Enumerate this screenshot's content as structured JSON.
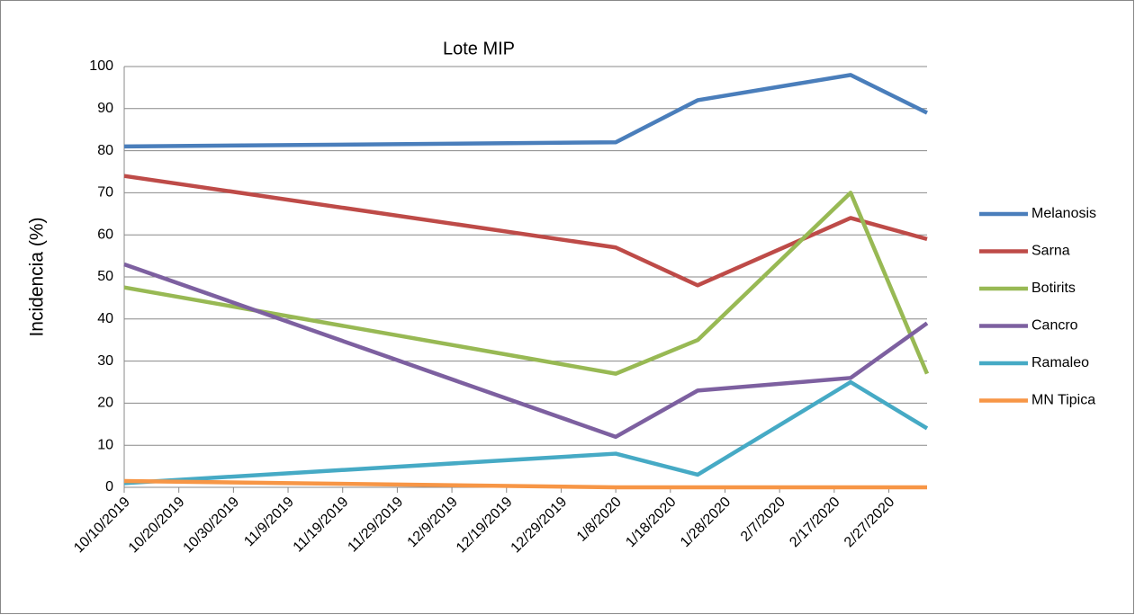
{
  "chart_data": {
    "type": "line",
    "title": "Lote MIP",
    "y_label": "Incidencia (%)",
    "x": [
      "10/10/2019",
      "1/8/2020",
      "1/23/2020",
      "2/20/2020",
      "3/5/2020"
    ],
    "series": [
      {
        "name": "Melanosis",
        "color": "#4a7ebb",
        "values": [
          81,
          82,
          92,
          98,
          89
        ]
      },
      {
        "name": "Sarna",
        "color": "#be4b48",
        "values": [
          74,
          57,
          48,
          64,
          59
        ]
      },
      {
        "name": "Botirits",
        "color": "#98b954",
        "values": [
          47.5,
          27,
          35,
          70,
          27
        ]
      },
      {
        "name": "Cancro",
        "color": "#7d60a0",
        "values": [
          53,
          12,
          23,
          26,
          39
        ]
      },
      {
        "name": "Ramaleo",
        "color": "#46aac5",
        "values": [
          1,
          8,
          3,
          25,
          14
        ]
      },
      {
        "name": "MN Tipica",
        "color": "#f79646",
        "values": [
          1.5,
          0,
          0,
          0,
          0
        ]
      }
    ],
    "xlim": [
      "10/10/2019",
      "3/5/2020"
    ],
    "xticks": [
      "10/10/2019",
      "10/20/2019",
      "10/30/2019",
      "11/9/2019",
      "11/19/2019",
      "11/29/2019",
      "12/9/2019",
      "12/19/2019",
      "12/29/2019",
      "1/8/2020",
      "1/18/2020",
      "1/28/2020",
      "2/7/2020",
      "2/17/2020",
      "2/27/2020"
    ],
    "ylim": [
      0,
      100
    ],
    "yticks": [
      0,
      10,
      20,
      30,
      40,
      50,
      60,
      70,
      80,
      90,
      100
    ],
    "grid": true,
    "legend": "right"
  }
}
